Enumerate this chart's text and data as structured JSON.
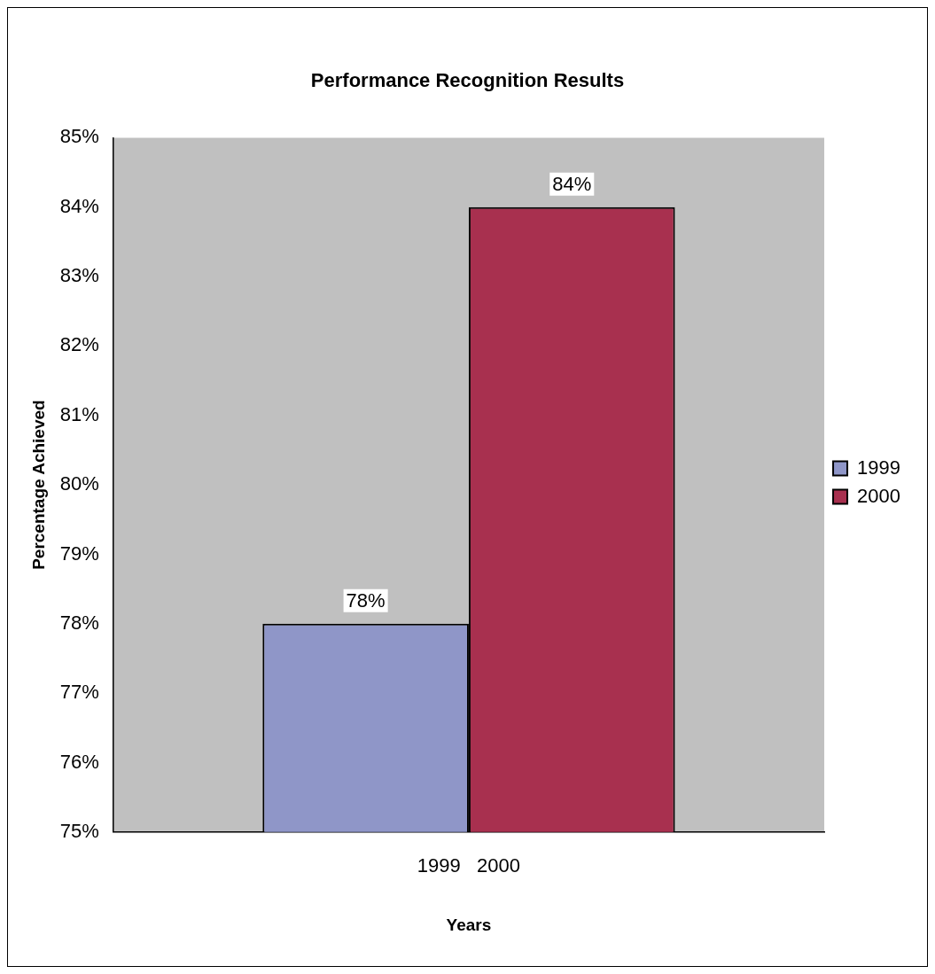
{
  "chart_data": {
    "type": "bar",
    "title": "Performance Recognition Results",
    "xlabel": "Years",
    "ylabel": "Percentage Achieved",
    "categories": [
      "1999   2000"
    ],
    "series": [
      {
        "name": "1999",
        "color": "#8f96c8",
        "values": [
          78
        ],
        "value_labels": [
          "78%"
        ]
      },
      {
        "name": "2000",
        "color": "#a8304f",
        "values": [
          84
        ],
        "value_labels": [
          "84%"
        ]
      }
    ],
    "ylim": [
      75,
      85
    ],
    "yticks": [
      {
        "value": 75,
        "label": "75%"
      },
      {
        "value": 76,
        "label": "76%"
      },
      {
        "value": 77,
        "label": "77%"
      },
      {
        "value": 78,
        "label": "78%"
      },
      {
        "value": 79,
        "label": "79%"
      },
      {
        "value": 80,
        "label": "80%"
      },
      {
        "value": 81,
        "label": "81%"
      },
      {
        "value": 82,
        "label": "82%"
      },
      {
        "value": 83,
        "label": "83%"
      },
      {
        "value": 84,
        "label": "84%"
      },
      {
        "value": 85,
        "label": "85%"
      }
    ],
    "legend": "right"
  }
}
